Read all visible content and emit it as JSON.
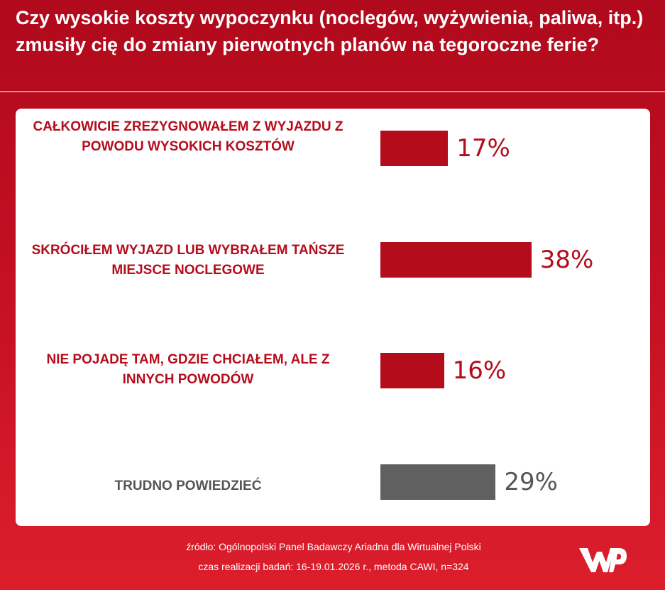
{
  "title": "Czy wysokie koszty wypoczynku (noclegów, wyżywienia, paliwa, itp.) zmusiły cię do zmiany pierwotnych planów na tegoroczne ferie?",
  "colors": {
    "accent": "#b50c1c",
    "neutral": "#555555",
    "bar_red": "#b50c1c",
    "bar_gray": "#606060"
  },
  "chart_data": {
    "type": "bar",
    "orientation": "horizontal",
    "unit": "%",
    "categories": [
      "CAŁKOWICIE ZREZYGNOWAŁEM Z WYJAZDU Z POWODU WYSOKICH KOSZTÓW",
      "SKRÓCIŁEM WYJAZD LUB WYBRAŁEM TAŃSZE MIEJSCE NOCLEGOWE",
      "NIE POJADĘ TAM, GDZIE CHCIAŁEM, ALE Z INNYCH POWODÓW",
      "TRUDNO POWIEDZIEĆ"
    ],
    "values": [
      17,
      38,
      16,
      29
    ],
    "value_labels": [
      "17%",
      "38%",
      "16%",
      "29%"
    ],
    "bar_colors": [
      "#b50c1c",
      "#b50c1c",
      "#b50c1c",
      "#606060"
    ]
  },
  "source": {
    "line1": "źródło: Ogólnopolski Panel Badawczy Ariadna dla Wirtualnej Polski",
    "line2": "czas realizacji badań: 16-19.01.2026 r., metoda CAWI, n=324"
  },
  "logo": {
    "icon": "wp-logo"
  }
}
